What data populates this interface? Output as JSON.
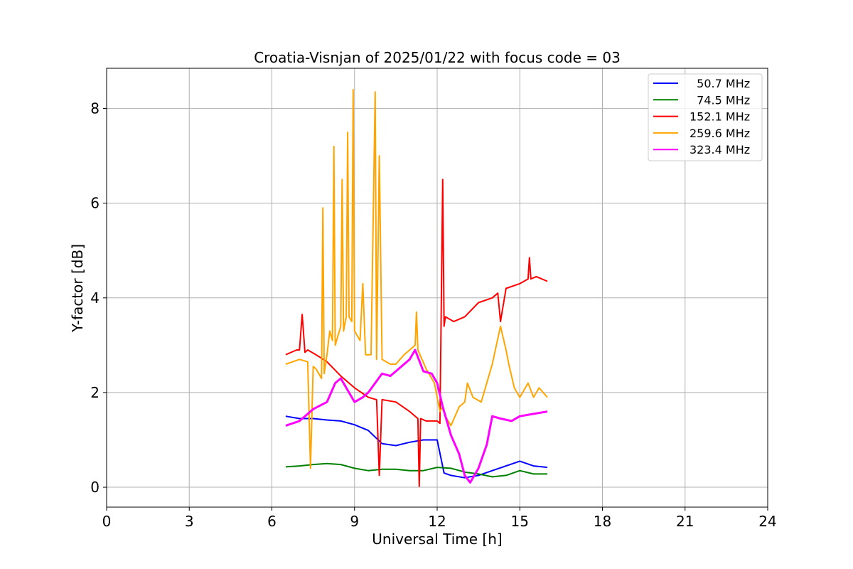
{
  "chart_data": {
    "type": "line",
    "title": "Croatia-Visnjan of 2025/01/22 with focus code = 03",
    "xlabel": "Universal Time [h]",
    "ylabel": "Y-factor [dB]",
    "xlim": [
      0,
      24
    ],
    "ylim": [
      -0.42,
      8.85
    ],
    "xticks": [
      0,
      3,
      6,
      9,
      12,
      15,
      18,
      21,
      24
    ],
    "xtick_labels": [
      "0",
      "3",
      "6",
      "9",
      "12",
      "15",
      "18",
      "21",
      "24"
    ],
    "yticks": [
      0,
      2,
      4,
      6,
      8
    ],
    "ytick_labels": [
      "0",
      "2",
      "4",
      "6",
      "8"
    ],
    "grid": true,
    "legend_position": "top-right",
    "series": [
      {
        "name": "50.7 MHz",
        "legend_label": "  50.7 MHz",
        "color": "#0000ff",
        "x": [
          6.5,
          7.0,
          7.5,
          8.0,
          8.5,
          9.0,
          9.5,
          10.0,
          10.5,
          11.0,
          11.5,
          12.0,
          12.25,
          12.5,
          13.0,
          13.5,
          14.0,
          14.5,
          15.0,
          15.5,
          16.0
        ],
        "y": [
          1.5,
          1.45,
          1.45,
          1.42,
          1.4,
          1.32,
          1.2,
          0.92,
          0.88,
          0.95,
          1.0,
          1.0,
          0.3,
          0.25,
          0.2,
          0.25,
          0.35,
          0.45,
          0.55,
          0.45,
          0.42
        ]
      },
      {
        "name": "74.5 MHz",
        "legend_label": "  74.5 MHz",
        "color": "#008000",
        "x": [
          6.5,
          7.0,
          7.5,
          8.0,
          8.5,
          9.0,
          9.5,
          10.0,
          10.5,
          11.0,
          11.5,
          12.0,
          12.5,
          13.0,
          13.5,
          14.0,
          14.5,
          15.0,
          15.5,
          16.0
        ],
        "y": [
          0.43,
          0.45,
          0.48,
          0.5,
          0.48,
          0.4,
          0.35,
          0.38,
          0.38,
          0.35,
          0.35,
          0.42,
          0.4,
          0.32,
          0.28,
          0.22,
          0.25,
          0.35,
          0.28,
          0.28
        ]
      },
      {
        "name": "152.1 MHz",
        "legend_label": "152.1 MHz",
        "color": "#ff0000",
        "x": [
          6.5,
          6.9,
          7.0,
          7.1,
          7.2,
          7.3,
          7.6,
          8.0,
          8.5,
          9.0,
          9.5,
          9.8,
          9.9,
          10.0,
          10.5,
          11.0,
          11.3,
          11.35,
          11.4,
          11.6,
          12.0,
          12.1,
          12.2,
          12.25,
          12.3,
          12.6,
          13.0,
          13.5,
          14.0,
          14.2,
          14.3,
          14.5,
          15.0,
          15.3,
          15.35,
          15.4,
          15.6,
          16.0
        ],
        "y": [
          2.8,
          2.9,
          2.9,
          3.65,
          2.85,
          2.9,
          2.8,
          2.65,
          2.35,
          2.1,
          1.9,
          1.85,
          0.25,
          1.85,
          1.8,
          1.6,
          1.45,
          0.02,
          1.45,
          1.4,
          1.4,
          1.35,
          6.5,
          3.4,
          3.6,
          3.5,
          3.6,
          3.9,
          4.0,
          4.1,
          3.5,
          4.2,
          4.3,
          4.4,
          4.85,
          4.4,
          4.45,
          4.35
        ]
      },
      {
        "name": "259.6 MHz",
        "legend_label": "259.6 MHz",
        "color": "#ffa500",
        "x": [
          6.5,
          7.0,
          7.3,
          7.4,
          7.5,
          7.6,
          7.7,
          7.8,
          7.85,
          7.9,
          8.0,
          8.1,
          8.2,
          8.25,
          8.3,
          8.5,
          8.55,
          8.6,
          8.7,
          8.75,
          8.8,
          8.9,
          8.95,
          9.0,
          9.2,
          9.3,
          9.4,
          9.6,
          9.75,
          9.8,
          9.9,
          10.0,
          10.3,
          10.5,
          10.8,
          11.2,
          11.25,
          11.3,
          11.6,
          11.9,
          12.1,
          12.2,
          12.3,
          12.5,
          12.8,
          13.0,
          13.1,
          13.3,
          13.6,
          14.0,
          14.3,
          14.5,
          14.6,
          14.8,
          15.0,
          15.3,
          15.5,
          15.7,
          16.0
        ],
        "y": [
          2.6,
          2.7,
          2.65,
          0.4,
          2.55,
          2.5,
          2.4,
          2.3,
          5.9,
          2.4,
          2.8,
          3.3,
          3.1,
          7.2,
          3.0,
          3.4,
          6.5,
          3.3,
          3.6,
          7.5,
          3.6,
          3.5,
          8.4,
          3.3,
          3.1,
          4.3,
          2.8,
          2.8,
          8.35,
          2.7,
          7.0,
          2.7,
          2.6,
          2.6,
          2.8,
          3.0,
          3.7,
          2.9,
          2.5,
          2.2,
          1.6,
          1.7,
          1.5,
          1.3,
          1.7,
          1.8,
          2.2,
          1.9,
          1.8,
          2.6,
          3.4,
          2.9,
          2.6,
          2.1,
          1.9,
          2.2,
          1.9,
          2.1,
          1.9
        ]
      },
      {
        "name": "323.4 MHz",
        "legend_label": "323.4 MHz",
        "color": "#ff00ff",
        "x": [
          6.5,
          7.0,
          7.5,
          8.0,
          8.3,
          8.5,
          8.8,
          9.0,
          9.3,
          9.5,
          10.0,
          10.3,
          10.6,
          11.0,
          11.2,
          11.5,
          11.8,
          12.0,
          12.2,
          12.5,
          12.8,
          13.0,
          13.2,
          13.5,
          13.8,
          14.0,
          14.3,
          14.7,
          15.0,
          15.5,
          16.0
        ],
        "y": [
          1.3,
          1.4,
          1.65,
          1.8,
          2.2,
          2.3,
          2.0,
          1.8,
          1.9,
          2.0,
          2.4,
          2.35,
          2.5,
          2.7,
          2.9,
          2.45,
          2.4,
          2.2,
          1.7,
          1.1,
          0.7,
          0.25,
          0.1,
          0.4,
          0.9,
          1.5,
          1.45,
          1.4,
          1.5,
          1.55,
          1.6
        ]
      }
    ]
  }
}
